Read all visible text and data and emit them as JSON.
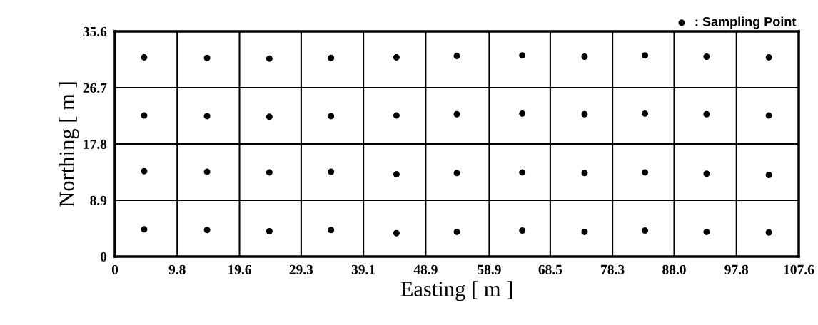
{
  "chart_data": {
    "type": "scatter",
    "xlabel": "Easting [ m ]",
    "ylabel": "Northing [ m ]",
    "series": [
      {
        "name": ": Sampling Point",
        "color": "#000000",
        "marker": "circle",
        "x": [
          4.6,
          14.5,
          24.3,
          34.0,
          44.3,
          53.8,
          64.1,
          73.9,
          83.4,
          93.1,
          102.9,
          4.6,
          14.5,
          24.3,
          34.0,
          44.3,
          53.8,
          64.1,
          73.9,
          83.4,
          93.1,
          102.9,
          4.6,
          14.5,
          24.3,
          34.0,
          44.3,
          53.8,
          64.1,
          73.9,
          83.4,
          93.1,
          102.9,
          4.6,
          14.5,
          24.3,
          34.0,
          44.3,
          53.8,
          64.1,
          73.9,
          83.4,
          93.1,
          102.9
        ],
        "values": [
          31.5,
          31.4,
          31.3,
          31.4,
          31.5,
          31.7,
          31.8,
          31.6,
          31.8,
          31.6,
          31.5,
          22.3,
          22.2,
          22.1,
          22.2,
          22.3,
          22.5,
          22.6,
          22.5,
          22.6,
          22.5,
          22.3,
          13.5,
          13.4,
          13.3,
          13.4,
          13.0,
          13.2,
          13.3,
          13.2,
          13.3,
          13.1,
          12.9,
          4.3,
          4.2,
          4.0,
          4.2,
          3.7,
          3.9,
          4.1,
          3.9,
          4.1,
          3.9,
          3.8
        ]
      }
    ],
    "xlim": [
      0,
      107.6
    ],
    "ylim": [
      0,
      35.6
    ],
    "xticks": [
      0,
      9.8,
      19.6,
      29.3,
      39.1,
      48.9,
      58.9,
      68.5,
      78.3,
      {
        "value": 88.0,
        "label": "88.0"
      },
      97.8,
      107.6
    ],
    "yticks": [
      0,
      8.9,
      17.8,
      26.7,
      35.6
    ],
    "grid": true,
    "legend": "top right"
  }
}
